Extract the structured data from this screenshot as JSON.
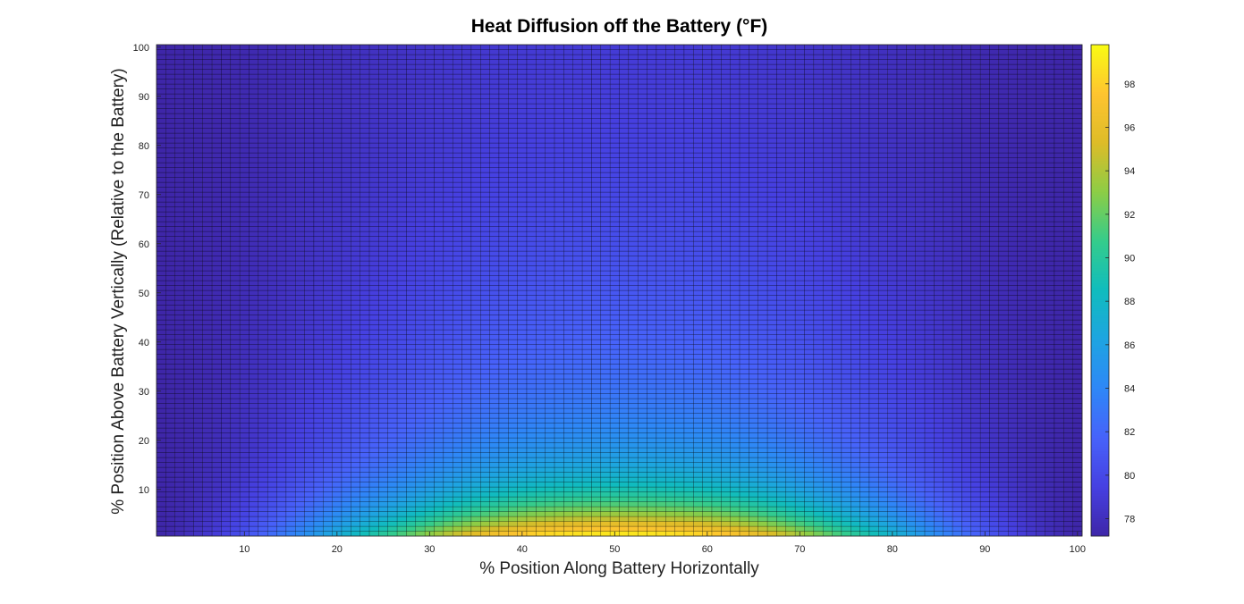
{
  "chart_data": {
    "type": "heatmap",
    "title": "Heat Diffusion off the Battery (°F)",
    "xlabel": "% Position Along Battery Horizontally",
    "ylabel": "% Position Above Battery Vertically (Relative to the Battery)",
    "xlim": [
      0.5,
      100.5
    ],
    "ylim": [
      0.5,
      100.5
    ],
    "x_ticks": [
      10,
      20,
      30,
      40,
      50,
      60,
      70,
      80,
      90,
      100
    ],
    "y_ticks": [
      10,
      20,
      30,
      40,
      50,
      60,
      70,
      80,
      90,
      100
    ],
    "grid_size": [
      100,
      100
    ],
    "colormap": "parula",
    "colorbar": {
      "min": 77.2,
      "max": 99.8,
      "ticks": [
        78,
        80,
        82,
        84,
        86,
        88,
        90,
        92,
        94,
        96,
        98
      ],
      "placement": "right"
    },
    "field": {
      "ambient": 77.2,
      "peak": 99.8,
      "description_points": [
        {
          "x": 50,
          "y": 1,
          "value": 99.5
        },
        {
          "x": 50,
          "y": 10,
          "value": 95.5
        },
        {
          "x": 50,
          "y": 20,
          "value": 89.5
        },
        {
          "x": 50,
          "y": 30,
          "value": 86.0
        },
        {
          "x": 50,
          "y": 50,
          "value": 82.5
        },
        {
          "x": 50,
          "y": 100,
          "value": 80.0
        },
        {
          "x": 1,
          "y": 50,
          "value": 77.5
        },
        {
          "x": 100,
          "y": 50,
          "value": 77.5
        }
      ]
    }
  }
}
